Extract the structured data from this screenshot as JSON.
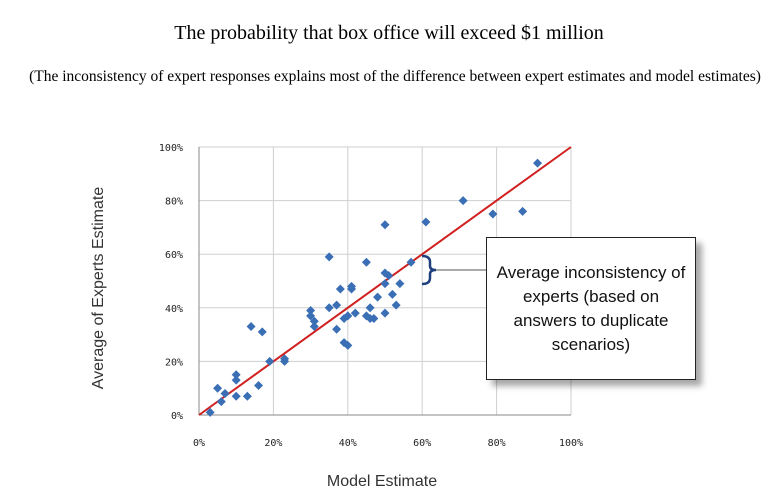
{
  "title": "The probability that box office will exceed $1 million",
  "subtitle": "(The inconsistency of expert responses explains most of the difference between expert estimates and model estimates)",
  "annotation": "Average inconsistency of experts (based on answers to duplicate scenarios)",
  "chart_data": {
    "type": "scatter",
    "xlabel": "Model Estimate",
    "ylabel": "Average of Experts Estimate",
    "xlim": [
      0,
      100
    ],
    "ylim": [
      0,
      100
    ],
    "x_ticks": [
      "0%",
      "20%",
      "40%",
      "60%",
      "80%",
      "100%"
    ],
    "y_ticks": [
      "0%",
      "20%",
      "40%",
      "60%",
      "80%",
      "100%"
    ],
    "grid": true,
    "marker_color": "#3A6FB5",
    "reference_line": {
      "x": [
        0,
        100
      ],
      "y": [
        0,
        100
      ],
      "color": "#D02020"
    },
    "bracket_color": "#1F3F7F",
    "points": [
      [
        3,
        1
      ],
      [
        5,
        10
      ],
      [
        6,
        5
      ],
      [
        7,
        8
      ],
      [
        10,
        7
      ],
      [
        10,
        13
      ],
      [
        10,
        15
      ],
      [
        13,
        7
      ],
      [
        14,
        33
      ],
      [
        16,
        11
      ],
      [
        17,
        31
      ],
      [
        19,
        20
      ],
      [
        23,
        21
      ],
      [
        23,
        20
      ],
      [
        30,
        39
      ],
      [
        30,
        37
      ],
      [
        31,
        33
      ],
      [
        31,
        35
      ],
      [
        35,
        59
      ],
      [
        35,
        40
      ],
      [
        37,
        41
      ],
      [
        37,
        32
      ],
      [
        38,
        47
      ],
      [
        39,
        36
      ],
      [
        39,
        27
      ],
      [
        40,
        26
      ],
      [
        40,
        37
      ],
      [
        41,
        47
      ],
      [
        41,
        48
      ],
      [
        42,
        38
      ],
      [
        45,
        57
      ],
      [
        45,
        37
      ],
      [
        46,
        40
      ],
      [
        46,
        36
      ],
      [
        47,
        36
      ],
      [
        48,
        44
      ],
      [
        50,
        49
      ],
      [
        50,
        53
      ],
      [
        50,
        71
      ],
      [
        50,
        38
      ],
      [
        51,
        52
      ],
      [
        52,
        45
      ],
      [
        53,
        41
      ],
      [
        54,
        49
      ],
      [
        57,
        57
      ],
      [
        61,
        72
      ],
      [
        71,
        80
      ],
      [
        79,
        75
      ],
      [
        87,
        76
      ],
      [
        91,
        94
      ]
    ]
  }
}
